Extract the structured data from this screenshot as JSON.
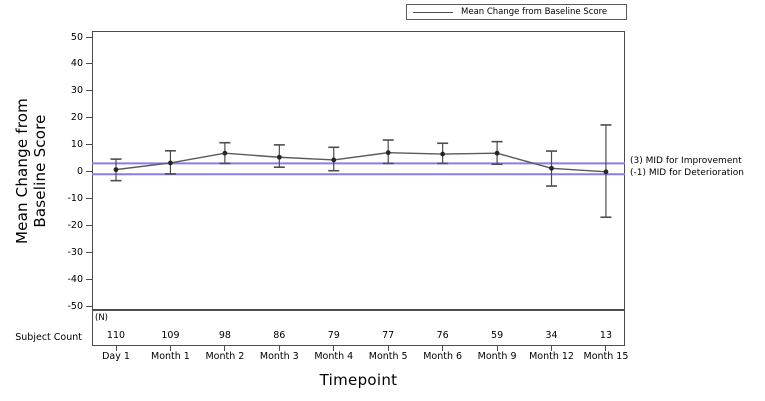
{
  "chart_data": {
    "type": "line",
    "title": "",
    "xlabel": "Timepoint",
    "ylabel": "Mean Change from Baseline Score",
    "ylabel_lines": [
      "Mean Change from",
      "Baseline Score"
    ],
    "ylim": [
      -50,
      50
    ],
    "yticks": [
      50,
      40,
      30,
      20,
      10,
      0,
      -10,
      -20,
      -30,
      -40,
      -50
    ],
    "grid": false,
    "legend": {
      "position": "top-right",
      "entries": [
        "Mean Change from Baseline Score"
      ]
    },
    "categories": [
      "Day 1",
      "Month 1",
      "Month 2",
      "Month 3",
      "Month 4",
      "Month 5",
      "Month 6",
      "Month 9",
      "Month 12",
      "Month 15"
    ],
    "series": [
      {
        "name": "Mean Change from Baseline Score",
        "means": [
          0.7,
          3.2,
          6.8,
          5.3,
          4.3,
          7.0,
          6.5,
          6.8,
          1.2,
          -0.1
        ],
        "upper": [
          4.6,
          7.7,
          10.7,
          9.9,
          9.0,
          11.7,
          10.5,
          11.1,
          7.6,
          17.3
        ],
        "lower": [
          -3.4,
          -0.9,
          3.0,
          1.6,
          0.3,
          3.0,
          3.0,
          2.7,
          -5.4,
          -17.0
        ]
      }
    ],
    "reference_lines": [
      {
        "value": 3,
        "label": "(3) MID for Improvement"
      },
      {
        "value": -1,
        "label": "(-1) MID for Deterioration"
      }
    ],
    "subject_count": {
      "row_label": "Subject Count",
      "unit_label": "(N)",
      "values": [
        110,
        109,
        98,
        86,
        79,
        77,
        76,
        59,
        34,
        13
      ]
    },
    "colors": {
      "reference_line": "#8B7DE8",
      "series_line": "#5a5a5a",
      "marker": "#262626",
      "error_bar": "#4d4d4d",
      "frame": "#4d4d4d"
    }
  }
}
